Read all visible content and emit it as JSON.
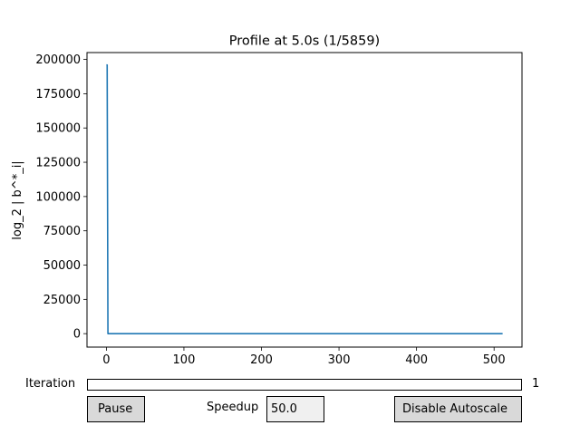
{
  "chart_data": {
    "type": "line",
    "title": "Profile at 5.0s (1/5859)",
    "xlabel": "",
    "ylabel": "log_2 | b^*_i|",
    "xlim": [
      -25,
      536
    ],
    "ylim": [
      -9800,
      205000
    ],
    "x_ticks": [
      "0",
      "100",
      "200",
      "300",
      "400",
      "500"
    ],
    "y_ticks": [
      "0",
      "25000",
      "50000",
      "75000",
      "100000",
      "125000",
      "150000",
      "175000",
      "200000"
    ],
    "series": [
      {
        "color": "#1f77b4",
        "x": [
          0,
          1,
          2,
          511
        ],
        "y": [
          196000,
          196000,
          0,
          0
        ]
      }
    ]
  },
  "controls": {
    "iteration_label": "Iteration",
    "iteration_value": "1",
    "iteration_fraction": 0.0,
    "pause_label": "Pause",
    "speedup_label": "Speedup",
    "speedup_value": "50.0",
    "autoscale_label": "Disable Autoscale"
  }
}
